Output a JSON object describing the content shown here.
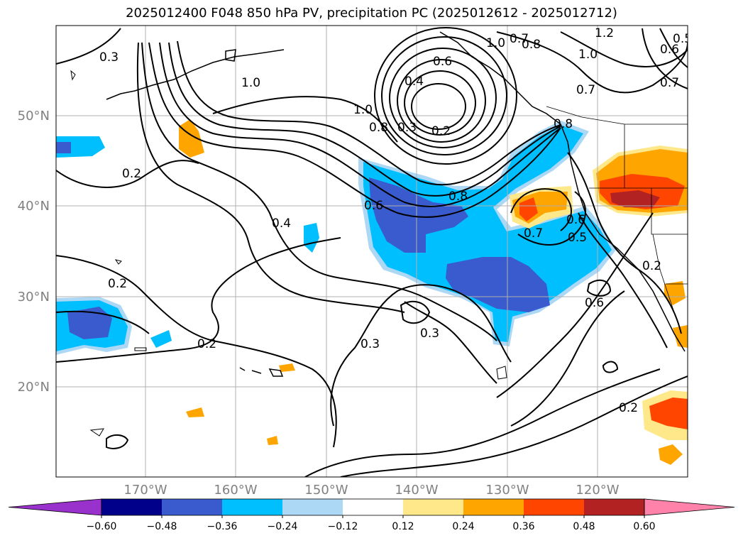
{
  "title": "2025012400 F048 850 hPa PV, precipitation PC (2025012612 - 2025012712)",
  "lat_labels": [
    "50°N",
    "40°N",
    "30°N",
    "20°N"
  ],
  "lon_labels": [
    "170°W",
    "160°W",
    "150°W",
    "140°W",
    "130°W",
    "120°W"
  ],
  "colorbar": {
    "ticks": [
      "−0.60",
      "−0.48",
      "−0.36",
      "−0.24",
      "−0.12",
      "0.12",
      "0.24",
      "0.36",
      "0.48",
      "0.60"
    ],
    "colors": [
      "#9932cc",
      "#00008b",
      "#3a5bcd",
      "#00bfff",
      "#add8f5",
      "#ffffff",
      "#ffe88a",
      "#ffa500",
      "#ff4500",
      "#b22222",
      "#ff82ab"
    ]
  },
  "contour_labels": [
    "0.3",
    "1.0",
    "0.2",
    "0.4",
    "0.2",
    "0.2",
    "0.6",
    "0.8",
    "1.0",
    "0.8",
    "0.3",
    "0.2",
    "0.4",
    "0.6",
    "0.7",
    "1.0",
    "0.8",
    "1.2",
    "1.0",
    "0.7",
    "0.6",
    "0.5",
    "0.7",
    "0.3",
    "0.3",
    "0.6",
    "0.8",
    "0.7",
    "0.5",
    "0.2",
    "0.6",
    "0.2"
  ],
  "colors": {
    "shade_light_blue": "#add8f5",
    "shade_blue": "#00bfff",
    "shade_dark_blue": "#3a5bcd",
    "shade_yellow": "#ffe88a",
    "shade_orange": "#ffa500",
    "shade_red": "#ff4500",
    "shade_dark_red": "#b22222"
  }
}
